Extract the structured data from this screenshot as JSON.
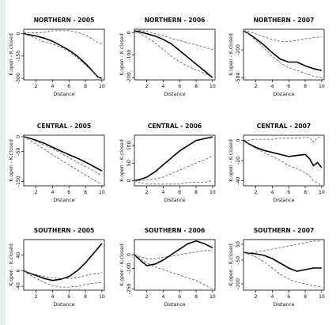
{
  "chart_data": [
    {
      "type": "line",
      "title": "NORTHERN - 2005",
      "xlabel": "Distance",
      "ylabel": "K.open - K.closed",
      "xlim": [
        0.5,
        10.3
      ],
      "ylim": [
        -310,
        30
      ],
      "xticks": [
        2,
        4,
        6,
        8,
        10
      ],
      "yticks": [
        0,
        -150,
        -300
      ],
      "x": [
        0.5,
        1,
        2,
        3,
        4,
        5,
        6,
        7,
        8,
        9,
        9.5,
        10
      ],
      "series": [
        {
          "role": "observed",
          "values": [
            0,
            -5,
            -15,
            -30,
            -50,
            -80,
            -110,
            -150,
            -200,
            -260,
            -290,
            -300
          ]
        },
        {
          "role": "upper-envelope",
          "values": [
            8,
            5,
            5,
            10,
            20,
            20,
            20,
            10,
            -10,
            -40,
            -60,
            -70
          ]
        },
        {
          "role": "lower-envelope",
          "values": [
            0,
            -10,
            -30,
            -55,
            -70,
            -90,
            -120,
            -160,
            -210,
            -260,
            -290,
            -300
          ]
        }
      ]
    },
    {
      "type": "line",
      "title": "NORTHERN - 2006",
      "xlabel": "Distance",
      "ylabel": "K.open - K.closed",
      "xlim": [
        0.5,
        10.3
      ],
      "ylim": [
        -210,
        15
      ],
      "xticks": [
        2,
        4,
        6,
        8,
        10
      ],
      "yticks": [
        0,
        -100,
        -200
      ],
      "x": [
        0.5,
        1,
        2,
        3,
        4,
        5,
        6,
        7,
        8,
        9,
        10
      ],
      "series": [
        {
          "role": "observed",
          "values": [
            5,
            5,
            -5,
            -15,
            -30,
            -50,
            -80,
            -110,
            -140,
            -170,
            -200
          ]
        },
        {
          "role": "upper-envelope",
          "values": [
            10,
            10,
            5,
            -5,
            -15,
            -25,
            -35,
            -45,
            -55,
            -65,
            -75
          ]
        },
        {
          "role": "lower-envelope",
          "values": [
            5,
            0,
            -20,
            -45,
            -75,
            -105,
            -130,
            -150,
            -165,
            -180,
            -200
          ]
        }
      ]
    },
    {
      "type": "line",
      "title": "NORTHERN - 2007",
      "xlabel": "Distance",
      "ylabel": "K.open - K.closed",
      "xlim": [
        0.5,
        10.3
      ],
      "ylim": [
        -520,
        20
      ],
      "xticks": [
        2,
        4,
        6,
        8,
        10
      ],
      "yticks": [
        -200,
        -500
      ],
      "x": [
        0.5,
        1,
        2,
        3,
        4,
        5,
        6,
        7,
        8,
        9,
        10
      ],
      "series": [
        {
          "role": "observed",
          "values": [
            0,
            -20,
            -80,
            -150,
            -230,
            -300,
            -330,
            -330,
            -370,
            -400,
            -420
          ]
        },
        {
          "role": "upper-envelope",
          "values": [
            5,
            0,
            -30,
            -60,
            -90,
            -110,
            -110,
            -100,
            -80,
            -70,
            -60
          ]
        },
        {
          "role": "lower-envelope",
          "values": [
            0,
            -20,
            -100,
            -180,
            -270,
            -340,
            -390,
            -420,
            -450,
            -480,
            -500
          ]
        }
      ]
    },
    {
      "type": "line",
      "title": "CENTRAL - 2005",
      "xlabel": "Distance",
      "ylabel": "K.open - K.closed",
      "xlim": [
        0.5,
        10.3
      ],
      "ylim": [
        -165,
        5
      ],
      "xticks": [
        2,
        4,
        6,
        8,
        10
      ],
      "yticks": [
        0,
        -50,
        -150
      ],
      "x": [
        0.5,
        1,
        2,
        3,
        4,
        5,
        6,
        7,
        8,
        9,
        10
      ],
      "series": [
        {
          "role": "observed",
          "values": [
            0,
            -3,
            -12,
            -22,
            -35,
            -48,
            -60,
            -72,
            -85,
            -100,
            -115
          ]
        },
        {
          "role": "upper-envelope",
          "values": [
            0,
            -4,
            -15,
            -28,
            -40,
            -55,
            -70,
            -85,
            -100,
            -115,
            -130
          ]
        },
        {
          "role": "lower-envelope",
          "values": [
            0,
            -8,
            -25,
            -42,
            -60,
            -78,
            -95,
            -112,
            -128,
            -145,
            -160
          ]
        }
      ]
    },
    {
      "type": "line",
      "title": "CENTRAL - 2006",
      "xlabel": "Distance",
      "ylabel": "K.open - K.closed",
      "xlim": [
        0.5,
        10.3
      ],
      "ylim": [
        -15,
        130
      ],
      "xticks": [
        2,
        4,
        6,
        8,
        10
      ],
      "yticks": [
        0,
        50,
        100
      ],
      "x": [
        0.5,
        1,
        2,
        3,
        4,
        5,
        6,
        7,
        8,
        9,
        10
      ],
      "series": [
        {
          "role": "observed",
          "values": [
            0,
            2,
            10,
            25,
            45,
            65,
            85,
            100,
            115,
            120,
            125
          ]
        },
        {
          "role": "upper-envelope",
          "values": [
            0,
            0,
            2,
            5,
            10,
            20,
            30,
            40,
            50,
            60,
            70
          ]
        },
        {
          "role": "lower-envelope",
          "values": [
            0,
            -5,
            -10,
            -10,
            -10,
            -10,
            -10,
            -5,
            -5,
            -5,
            0
          ]
        }
      ]
    },
    {
      "type": "line",
      "title": "CENTRAL - 2007",
      "xlabel": "Distance",
      "ylabel": "K.open - K.closed",
      "xlim": [
        0.5,
        10.3
      ],
      "ylim": [
        -45,
        5
      ],
      "xticks": [
        2,
        4,
        6,
        8,
        10
      ],
      "yticks": [
        0,
        -20,
        -40
      ],
      "x": [
        0.5,
        1,
        2,
        3,
        4,
        5,
        6,
        7,
        8,
        8.5,
        9,
        9.5,
        10
      ],
      "series": [
        {
          "role": "observed",
          "values": [
            0,
            -3,
            -7,
            -10,
            -12,
            -14,
            -16,
            -15,
            -14,
            -18,
            -25,
            -22,
            -27
          ]
        },
        {
          "role": "upper-envelope",
          "values": [
            0,
            0,
            1,
            1,
            1,
            2,
            2,
            2,
            3,
            3,
            -2,
            3,
            3
          ]
        },
        {
          "role": "lower-envelope",
          "values": [
            0,
            -3,
            -8,
            -12,
            -16,
            -20,
            -25,
            -28,
            -32,
            -35,
            -40,
            -42,
            -45
          ]
        }
      ]
    },
    {
      "type": "line",
      "title": "SOUTHERN - 2005",
      "xlabel": "Distance",
      "ylabel": "K.open - K.closed",
      "xlim": [
        0.5,
        10.3
      ],
      "ylim": [
        -50,
        80
      ],
      "xticks": [
        2,
        4,
        6,
        8,
        10
      ],
      "yticks": [
        -40,
        0,
        40
      ],
      "x": [
        0.5,
        1,
        2,
        3,
        4,
        5,
        6,
        7,
        8,
        9,
        10
      ],
      "series": [
        {
          "role": "observed",
          "values": [
            0,
            -5,
            -12,
            -20,
            -25,
            -22,
            -15,
            0,
            20,
            45,
            70
          ]
        },
        {
          "role": "upper-envelope",
          "values": [
            0,
            -5,
            -10,
            -15,
            -18,
            -20,
            -20,
            -18,
            -12,
            -8,
            -5
          ]
        },
        {
          "role": "lower-envelope",
          "values": [
            0,
            -8,
            -20,
            -30,
            -38,
            -42,
            -42,
            -40,
            -35,
            -32,
            -30
          ]
        }
      ]
    },
    {
      "type": "line",
      "title": "SOUTHERN - 2006",
      "xlabel": "Distance",
      "ylabel": "K.open - K.closed",
      "xlim": [
        0.5,
        10.3
      ],
      "ylim": [
        -260,
        110
      ],
      "xticks": [
        2,
        4,
        6,
        8,
        10
      ],
      "yticks": [
        0,
        -100,
        -250
      ],
      "x": [
        0.5,
        1,
        2,
        3,
        4,
        5,
        6,
        7,
        8,
        9,
        10
      ],
      "series": [
        {
          "role": "observed",
          "values": [
            0,
            -30,
            -80,
            -70,
            -40,
            0,
            40,
            80,
            100,
            80,
            50
          ]
        },
        {
          "role": "upper-envelope",
          "values": [
            0,
            -10,
            -30,
            -30,
            -20,
            -10,
            0,
            10,
            20,
            30,
            30
          ]
        },
        {
          "role": "lower-envelope",
          "values": [
            0,
            -20,
            -60,
            -90,
            -110,
            -130,
            -150,
            -170,
            -190,
            -220,
            -250
          ]
        }
      ]
    },
    {
      "type": "line",
      "title": "SOUTHERN - 2007",
      "xlabel": "Distance",
      "ylabel": "K.open - K.closed",
      "xlim": [
        0.5,
        10.3
      ],
      "ylim": [
        -240,
        80
      ],
      "xticks": [
        2,
        4,
        6,
        8,
        10
      ],
      "yticks": [
        -200,
        -50,
        50
      ],
      "x": [
        0.5,
        1,
        2,
        3,
        4,
        5,
        6,
        7,
        8,
        9,
        10
      ],
      "series": [
        {
          "role": "observed",
          "values": [
            0,
            -5,
            -10,
            -20,
            -40,
            -70,
            -100,
            -120,
            -110,
            -100,
            -100
          ]
        },
        {
          "role": "upper-envelope",
          "values": [
            0,
            -5,
            0,
            10,
            20,
            30,
            40,
            50,
            60,
            70,
            70
          ]
        },
        {
          "role": "lower-envelope",
          "values": [
            0,
            -10,
            -30,
            -60,
            -100,
            -140,
            -170,
            -190,
            -200,
            -210,
            -220
          ]
        }
      ]
    }
  ]
}
